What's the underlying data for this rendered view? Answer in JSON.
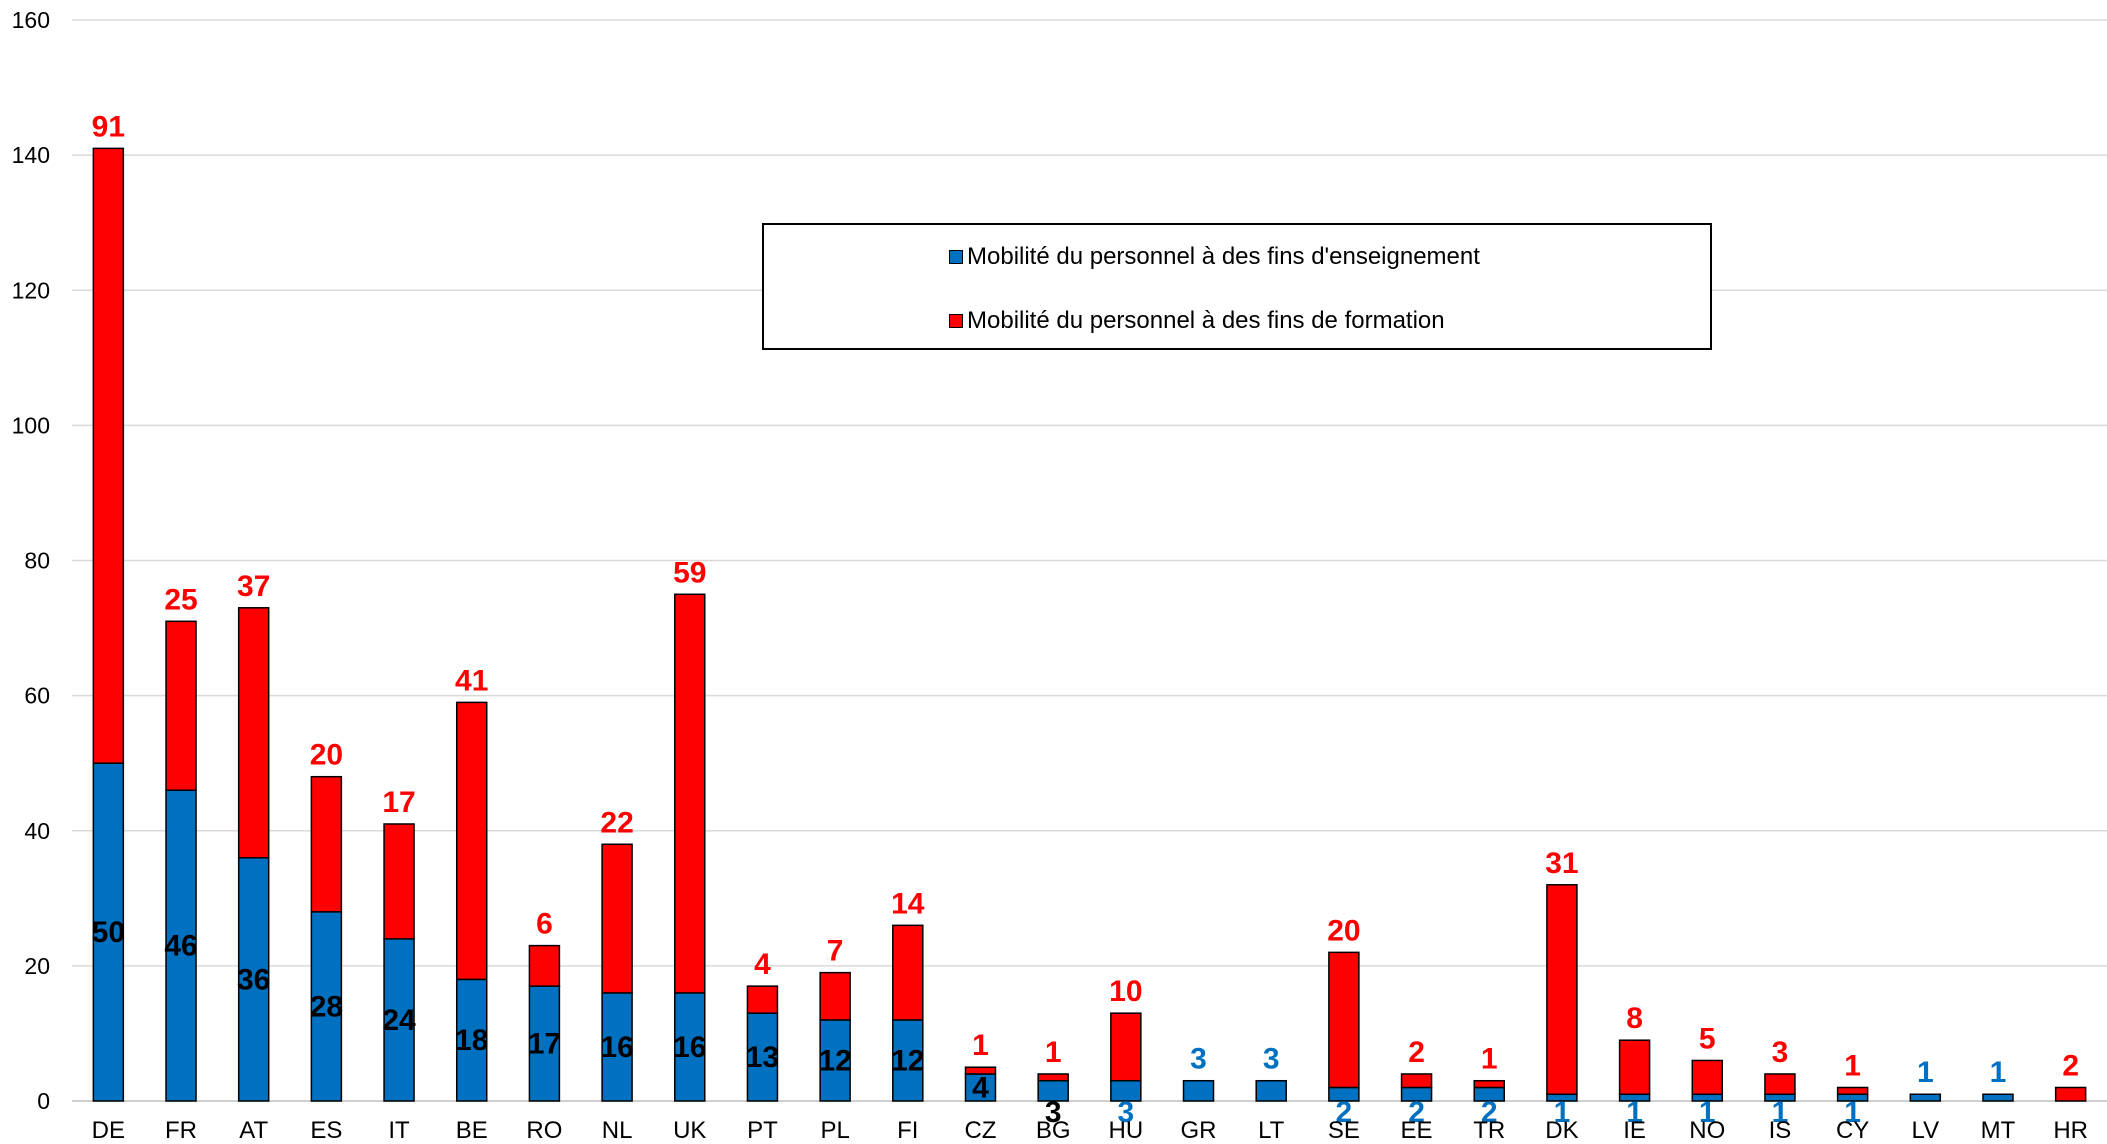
{
  "chart_data": {
    "type": "bar",
    "stacked": true,
    "categories": [
      "DE",
      "FR",
      "AT",
      "ES",
      "IT",
      "BE",
      "RO",
      "NL",
      "UK",
      "PT",
      "PL",
      "FI",
      "CZ",
      "BG",
      "HU",
      "GR",
      "LT",
      "SE",
      "EE",
      "TR",
      "DK",
      "IE",
      "NO",
      "IS",
      "CY",
      "LV",
      "MT",
      "HR"
    ],
    "series": [
      {
        "name": "Mobilité du personnel à des fins d'enseignement",
        "color": "#0070C0",
        "values": [
          50,
          46,
          36,
          28,
          24,
          18,
          17,
          16,
          16,
          13,
          12,
          12,
          4,
          3,
          3,
          3,
          3,
          2,
          2,
          2,
          1,
          1,
          1,
          1,
          1,
          1,
          1,
          0
        ]
      },
      {
        "name": "Mobilité du personnel à des fins de formation",
        "color": "#FF0000",
        "values": [
          91,
          25,
          37,
          20,
          17,
          41,
          6,
          22,
          59,
          4,
          7,
          14,
          1,
          1,
          10,
          0,
          0,
          20,
          2,
          1,
          31,
          8,
          5,
          3,
          1,
          0,
          0,
          2
        ]
      }
    ],
    "ylim": [
      0,
      160
    ],
    "yticks": [
      "0",
      "20",
      "40",
      "60",
      "80",
      "100",
      "120",
      "140",
      "160"
    ],
    "grid": true,
    "legend_position": "top-center",
    "title": "",
    "xlabel": "",
    "ylabel": ""
  }
}
